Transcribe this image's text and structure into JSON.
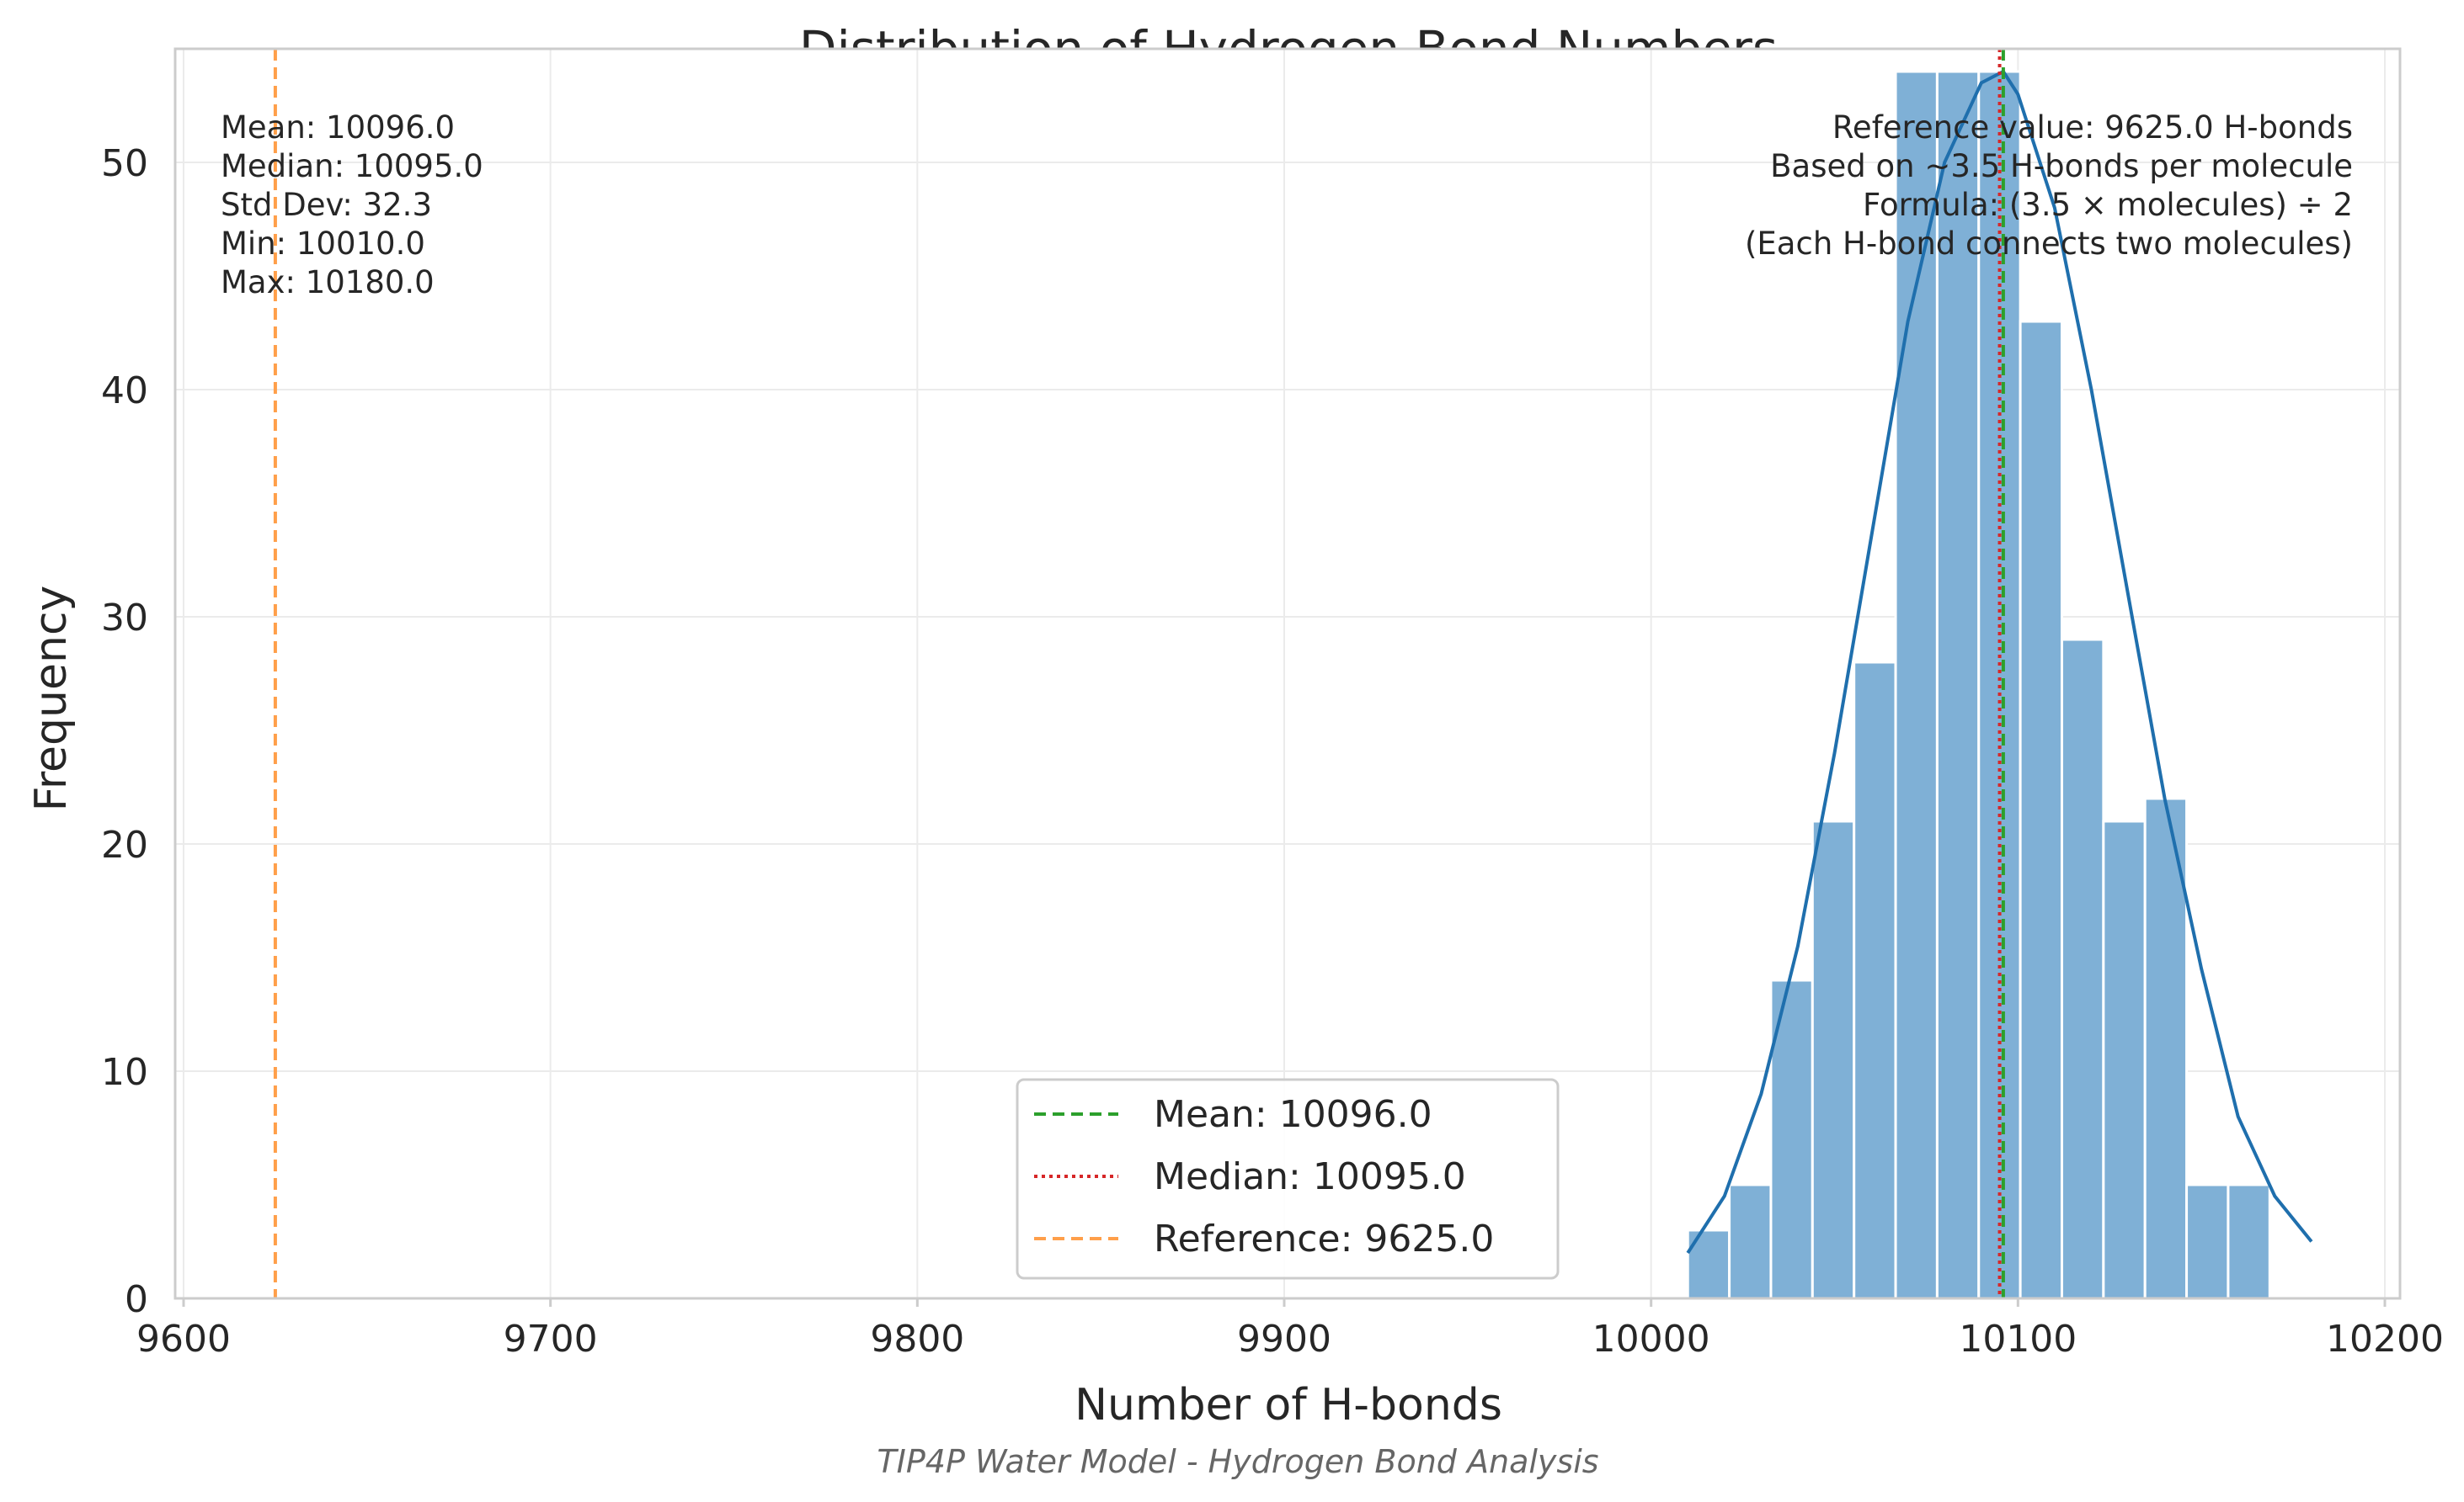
{
  "chart_data": {
    "type": "bar",
    "title": "Distribution of Hydrogen Bond Numbers",
    "xlabel": "Number of H-bonds",
    "ylabel": "Frequency",
    "footer": "TIP4P Water Model - Hydrogen Bond Analysis",
    "xlim": [
      9600,
      10200
    ],
    "ylim": [
      0,
      55
    ],
    "xticks": [
      9600,
      9700,
      9800,
      9900,
      10000,
      10100,
      10200
    ],
    "yticks": [
      0,
      10,
      20,
      30,
      40,
      50
    ],
    "grid": true,
    "bins": {
      "start": 10010,
      "width": 11.33,
      "counts": [
        3,
        5,
        14,
        21,
        28,
        54,
        54,
        54,
        43,
        29,
        21,
        22,
        5,
        5
      ]
    },
    "kde": {
      "x": [
        10010,
        10020,
        10030,
        10040,
        10050,
        10060,
        10070,
        10080,
        10090,
        10096,
        10100,
        10110,
        10120,
        10130,
        10140,
        10150,
        10160,
        10170,
        10180
      ],
      "y": [
        2,
        4.5,
        9,
        15.5,
        24,
        33.5,
        43,
        50,
        53.5,
        54,
        53,
        48,
        40,
        31,
        22,
        14.5,
        8,
        4.5,
        2.5
      ]
    },
    "lines": [
      {
        "name": "Mean: 10096.0",
        "x": 10096.0,
        "style": "dashed",
        "color": "#2ca02c"
      },
      {
        "name": "Median: 10095.0",
        "x": 10095.0,
        "style": "dotted",
        "color": "#d62728"
      },
      {
        "name": "Reference: 9625.0",
        "x": 9625.0,
        "style": "dashed",
        "color": "#ff9f4a"
      }
    ],
    "stats_box": [
      "Mean: 10096.0",
      "Median: 10095.0",
      "Std Dev: 32.3",
      "Min: 10010.0",
      "Max: 10180.0"
    ],
    "reference_box": [
      "Reference value: 9625.0 H-bonds",
      "Based on ~3.5 H-bonds per molecule",
      "Formula: (3.5 × molecules) ÷ 2",
      "(Each H-bond connects two molecules)"
    ],
    "legend_position": "lower-center",
    "colors": {
      "bar": "#7fb0d6",
      "kde": "#1f6fad",
      "grid": "#ebebeb",
      "spine": "#cccccc"
    }
  }
}
